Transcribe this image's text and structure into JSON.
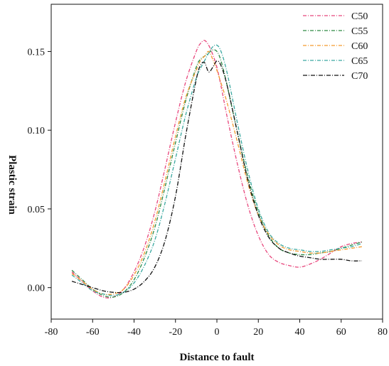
{
  "chart_data": {
    "type": "line",
    "xlabel": "Distance to fault",
    "ylabel": "Plastic strain",
    "xlim": [
      -80,
      80
    ],
    "ylim": [
      -0.02,
      0.18
    ],
    "xticks": [
      "-80",
      "-60",
      "-40",
      "-20",
      "0",
      "20",
      "40",
      "60",
      "80"
    ],
    "yticks": [
      "0.00",
      "0.05",
      "0.10",
      "0.15"
    ],
    "legend_position": "top-right",
    "grid": false,
    "series": [
      {
        "name": "C50",
        "color": "#e8467c",
        "dash": "5,2,1,2",
        "x": [
          -70,
          -65,
          -60,
          -55,
          -50,
          -45,
          -40,
          -35,
          -30,
          -25,
          -20,
          -15,
          -10,
          -8,
          -6,
          -4,
          -2,
          0,
          2,
          5,
          10,
          15,
          20,
          25,
          30,
          35,
          40,
          45,
          50,
          55,
          60,
          65,
          70
        ],
        "y": [
          0.01,
          0.004,
          -0.002,
          -0.006,
          -0.006,
          -0.001,
          0.01,
          0.026,
          0.048,
          0.076,
          0.105,
          0.131,
          0.15,
          0.155,
          0.157,
          0.154,
          0.148,
          0.14,
          0.128,
          0.108,
          0.078,
          0.052,
          0.033,
          0.021,
          0.016,
          0.014,
          0.013,
          0.015,
          0.018,
          0.022,
          0.026,
          0.028,
          0.029
        ]
      },
      {
        "name": "C55",
        "color": "#2e8b45",
        "dash": "5,2,1,2",
        "x": [
          -70,
          -65,
          -60,
          -55,
          -50,
          -45,
          -40,
          -35,
          -30,
          -25,
          -20,
          -15,
          -10,
          -8,
          -6,
          -4,
          -2,
          0,
          2,
          5,
          10,
          15,
          20,
          25,
          30,
          35,
          40,
          45,
          50,
          55,
          60,
          65,
          70
        ],
        "y": [
          0.011,
          0.005,
          -0.001,
          -0.005,
          -0.006,
          -0.003,
          0.005,
          0.019,
          0.038,
          0.064,
          0.092,
          0.119,
          0.14,
          0.145,
          0.147,
          0.149,
          0.151,
          0.15,
          0.144,
          0.128,
          0.098,
          0.07,
          0.048,
          0.033,
          0.025,
          0.022,
          0.021,
          0.021,
          0.022,
          0.023,
          0.025,
          0.027,
          0.029
        ]
      },
      {
        "name": "C60",
        "color": "#f39a2f",
        "dash": "5,2,1,2",
        "x": [
          -70,
          -65,
          -60,
          -55,
          -50,
          -45,
          -40,
          -35,
          -30,
          -25,
          -20,
          -15,
          -10,
          -8,
          -6,
          -4,
          -2,
          0,
          2,
          5,
          10,
          15,
          20,
          25,
          30,
          35,
          40,
          45,
          50,
          55,
          60,
          65,
          70
        ],
        "y": [
          0.009,
          0.004,
          -0.001,
          -0.004,
          -0.004,
          -0.001,
          0.008,
          0.022,
          0.042,
          0.068,
          0.096,
          0.121,
          0.138,
          0.144,
          0.147,
          0.15,
          0.145,
          0.138,
          0.13,
          0.117,
          0.092,
          0.066,
          0.046,
          0.034,
          0.027,
          0.024,
          0.023,
          0.022,
          0.022,
          0.023,
          0.024,
          0.025,
          0.026
        ]
      },
      {
        "name": "C65",
        "color": "#3aa8a0",
        "dash": "5,2,1,2",
        "x": [
          -70,
          -65,
          -60,
          -55,
          -50,
          -45,
          -40,
          -35,
          -30,
          -25,
          -20,
          -15,
          -10,
          -8,
          -6,
          -4,
          -2,
          0,
          2,
          5,
          10,
          15,
          20,
          25,
          30,
          35,
          40,
          45,
          50,
          55,
          60,
          65,
          70
        ],
        "y": [
          0.008,
          0.003,
          -0.002,
          -0.004,
          -0.005,
          -0.003,
          0.003,
          0.014,
          0.03,
          0.054,
          0.082,
          0.11,
          0.133,
          0.139,
          0.144,
          0.149,
          0.153,
          0.154,
          0.15,
          0.136,
          0.104,
          0.074,
          0.05,
          0.035,
          0.028,
          0.025,
          0.024,
          0.023,
          0.023,
          0.024,
          0.025,
          0.026,
          0.028
        ]
      },
      {
        "name": "C70",
        "color": "#111111",
        "dash": "6,2,1,2",
        "x": [
          -70,
          -65,
          -60,
          -55,
          -50,
          -45,
          -40,
          -35,
          -30,
          -25,
          -20,
          -15,
          -10,
          -8,
          -6,
          -4,
          -2,
          0,
          2,
          5,
          10,
          15,
          20,
          25,
          30,
          35,
          40,
          45,
          50,
          55,
          60,
          65,
          70
        ],
        "y": [
          0.004,
          0.002,
          0.0,
          -0.002,
          -0.003,
          -0.003,
          -0.001,
          0.004,
          0.013,
          0.03,
          0.058,
          0.097,
          0.132,
          0.141,
          0.143,
          0.137,
          0.14,
          0.144,
          0.141,
          0.128,
          0.098,
          0.068,
          0.046,
          0.032,
          0.025,
          0.022,
          0.02,
          0.019,
          0.018,
          0.018,
          0.018,
          0.017,
          0.017
        ]
      }
    ]
  }
}
